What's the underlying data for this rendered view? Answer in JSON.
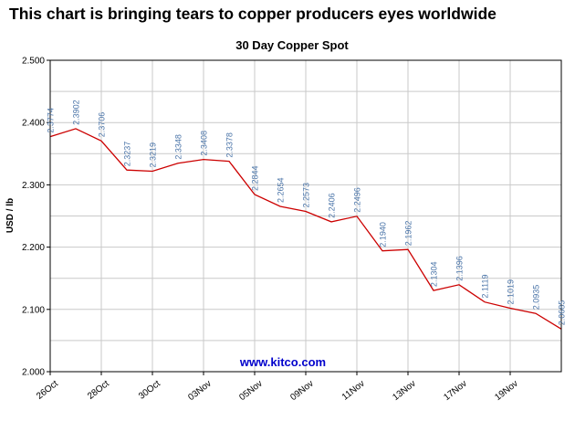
{
  "headline": "This chart is bringing tears to copper producers eyes worldwide",
  "watermark": "www.kitco.com",
  "colors": {
    "line": "#cc0000",
    "point_label": "#4a74a8",
    "grid": "#c9c9c9",
    "axis": "#000000",
    "watermark": "#0000cc"
  },
  "chart_data": {
    "type": "line",
    "title": "30 Day Copper Spot",
    "xlabel": "",
    "ylabel": "USD / lb",
    "ylim": [
      2.0,
      2.5
    ],
    "y_ticks": [
      2.0,
      2.1,
      2.2,
      2.3,
      2.4,
      2.5
    ],
    "y_minor_step": 0.05,
    "grid": true,
    "legend": "none",
    "x_tick_labels": [
      "26Oct",
      "28Oct",
      "30Oct",
      "03Nov",
      "05Nov",
      "09Nov",
      "11Nov",
      "13Nov",
      "17Nov",
      "19Nov"
    ],
    "x_tick_positions": [
      0,
      2,
      4,
      6,
      8,
      10,
      12,
      14,
      16,
      18
    ],
    "series": [
      {
        "name": "Copper Spot USD/lb",
        "values": [
          2.3774,
          2.3902,
          2.3706,
          2.3237,
          2.3219,
          2.3348,
          2.3408,
          2.3378,
          2.2844,
          2.2654,
          2.2573,
          2.2406,
          2.2496,
          2.194,
          2.1962,
          2.1304,
          2.1396,
          2.1119,
          2.1019,
          2.0935,
          2.0685
        ]
      }
    ]
  }
}
